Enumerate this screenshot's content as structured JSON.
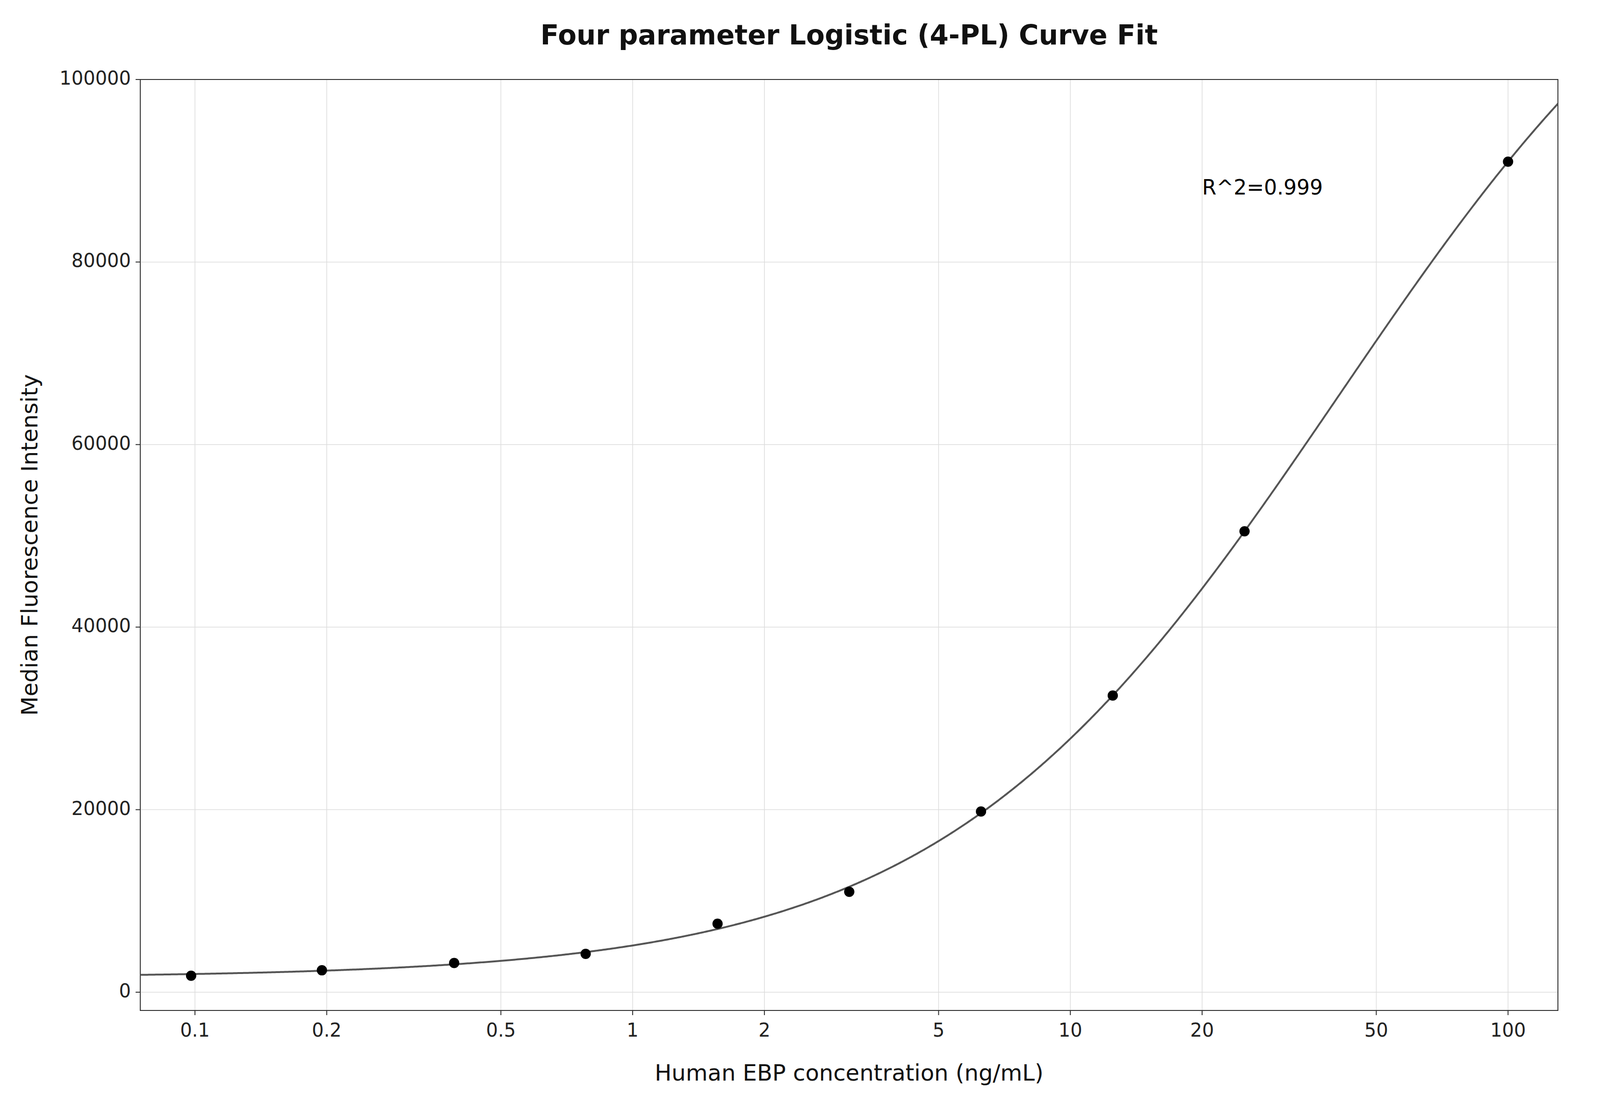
{
  "chart_data": {
    "type": "scatter",
    "title": "Four parameter Logistic (4-PL) Curve Fit",
    "x_label": "Human EBP concentration (ng/mL)",
    "y_label": "Median Fluorescence Intensity",
    "annotations": [
      {
        "text": "R^2=0.999",
        "x": 20,
        "y": 88000
      }
    ],
    "x": [
      0.098,
      0.195,
      0.391,
      0.781,
      1.563,
      3.125,
      6.25,
      12.5,
      25.0,
      100.0
    ],
    "values": [
      1800,
      2400,
      3200,
      4200,
      7500,
      11000,
      19800,
      32500,
      50500,
      91000
    ],
    "color": "#000000",
    "log": "x",
    "xlim": [
      0.075,
      130
    ],
    "xticks": [
      0.1,
      0.2,
      0.5,
      1,
      2,
      5,
      10,
      20,
      50,
      100
    ],
    "ylim": [
      -2000,
      100000
    ],
    "yticks": [
      0,
      20000,
      40000,
      60000,
      80000,
      100000
    ],
    "grid": true
  }
}
